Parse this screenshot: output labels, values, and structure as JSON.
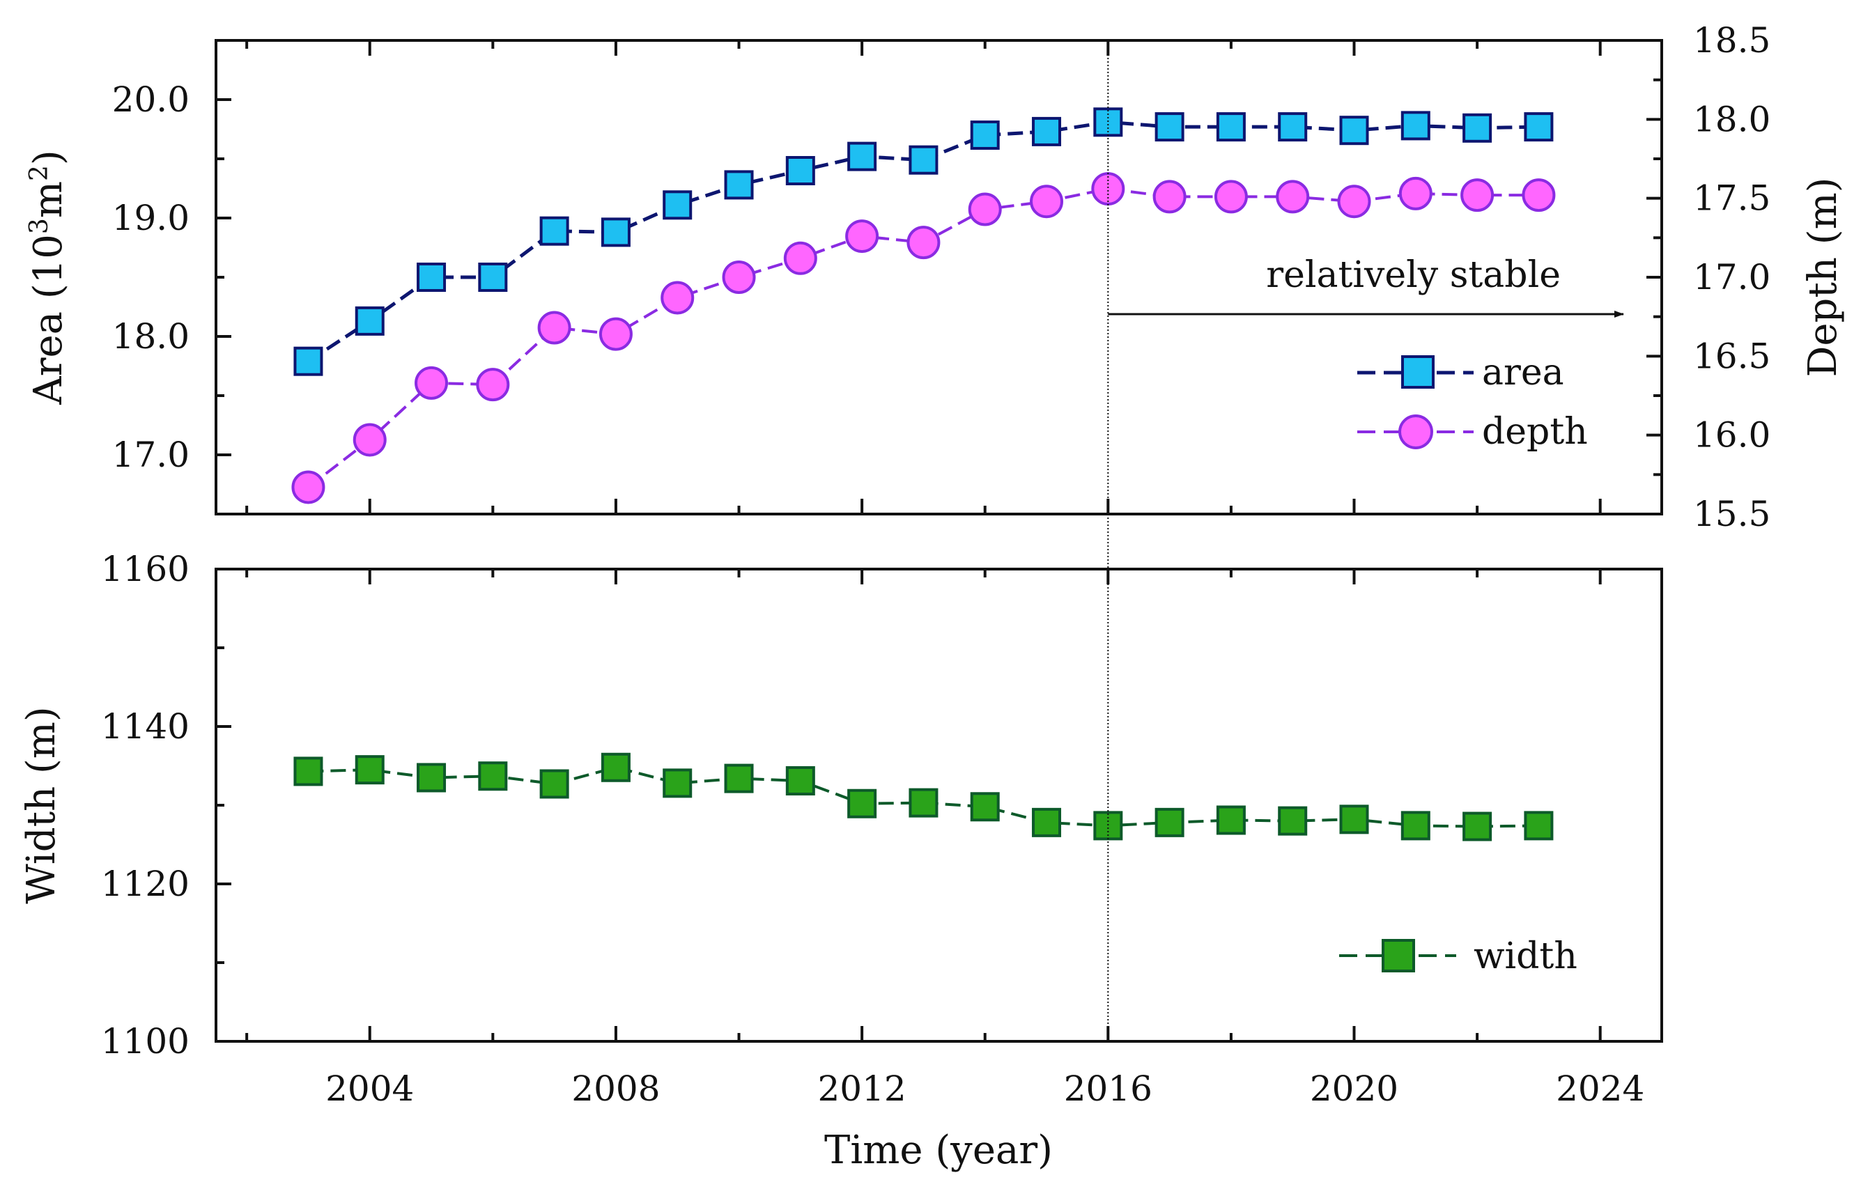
{
  "chart_data": [
    {
      "type": "line",
      "panel": "top",
      "x": [
        2003,
        2004,
        2005,
        2006,
        2007,
        2008,
        2009,
        2010,
        2011,
        2012,
        2013,
        2014,
        2015,
        2016,
        2017,
        2018,
        2019,
        2020,
        2021,
        2022,
        2023
      ],
      "series": [
        {
          "name": "area",
          "axis": "left",
          "marker": "square",
          "line_color": "#0d1670",
          "fill_color": "#1ebff2",
          "values": [
            17.79,
            18.13,
            18.5,
            18.5,
            18.89,
            18.88,
            19.11,
            19.28,
            19.4,
            19.52,
            19.49,
            19.7,
            19.73,
            19.81,
            19.77,
            19.77,
            19.77,
            19.74,
            19.78,
            19.76,
            19.77
          ]
        },
        {
          "name": "depth",
          "axis": "right",
          "marker": "circle",
          "line_color": "#8a2be2",
          "fill_color": "#ff66ff",
          "values": [
            15.67,
            15.97,
            16.33,
            16.32,
            16.68,
            16.64,
            16.87,
            17.0,
            17.12,
            17.26,
            17.22,
            17.43,
            17.48,
            17.56,
            17.51,
            17.51,
            17.51,
            17.48,
            17.53,
            17.52,
            17.52
          ]
        }
      ],
      "xlim": [
        2001.5,
        2025
      ],
      "ylim_left": [
        16.5,
        20.5
      ],
      "ylim_right": [
        15.5,
        18.5
      ],
      "yticks_left": [
        "17.0",
        "18.0",
        "19.0",
        "20.0"
      ],
      "yticks_right": [
        "15.5",
        "16.0",
        "16.5",
        "17.0",
        "17.5",
        "18.0",
        "18.5"
      ],
      "ylabel_left": "Area (10",
      "ylabel_left_sup": "3",
      "ylabel_left_mid": "m",
      "ylabel_left_sup2": "2",
      "ylabel_left_end": ")",
      "ylabel_right": "Depth (m)",
      "annotation": "relatively stable",
      "vline_x": 2016,
      "legend_position": "lower-right"
    },
    {
      "type": "line",
      "panel": "bottom",
      "x": [
        2003,
        2004,
        2005,
        2006,
        2007,
        2008,
        2009,
        2010,
        2011,
        2012,
        2013,
        2014,
        2015,
        2016,
        2017,
        2018,
        2019,
        2020,
        2021,
        2022,
        2023
      ],
      "series": [
        {
          "name": "width",
          "marker": "square",
          "line_color": "#0d5a2a",
          "fill_color": "#2aa31a",
          "values": [
            1134.3,
            1134.5,
            1133.5,
            1133.7,
            1132.7,
            1134.8,
            1132.8,
            1133.4,
            1133.1,
            1130.2,
            1130.3,
            1129.8,
            1127.8,
            1127.4,
            1127.8,
            1128.1,
            1128.0,
            1128.2,
            1127.4,
            1127.3,
            1127.4
          ]
        }
      ],
      "xlim": [
        2001.5,
        2025
      ],
      "ylim": [
        1100,
        1160
      ],
      "xticks": [
        "2004",
        "2008",
        "2012",
        "2016",
        "2020",
        "2024"
      ],
      "yticks": [
        "1100",
        "1120",
        "1140",
        "1160"
      ],
      "xlabel": "Time (year)",
      "ylabel": "Width (m)",
      "legend_position": "lower-right"
    }
  ]
}
